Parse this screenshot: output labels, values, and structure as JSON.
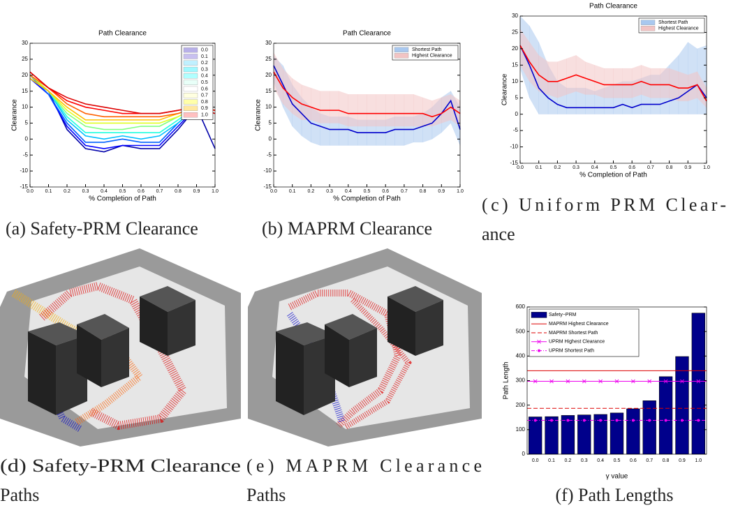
{
  "chart_data": [
    {
      "type": "line",
      "title": "Path Clearance",
      "x_label": "% Completion of Path",
      "y_label": "Clearance",
      "x": [
        0,
        0.1,
        0.2,
        0.3,
        0.4,
        0.5,
        0.6,
        0.7,
        0.8,
        0.9,
        1
      ],
      "xlim": [
        0,
        1
      ],
      "ylim": [
        -15,
        30
      ],
      "xticks": [
        {
          "value": 0,
          "label": "0.0"
        },
        0.1,
        0.2,
        0.3,
        0.4,
        0.5,
        0.6,
        0.7,
        0.8,
        0.9,
        {
          "value": 1,
          "label": "1.0"
        }
      ],
      "yticks": [
        -15,
        -10,
        -5,
        0,
        5,
        10,
        15,
        20,
        25,
        30
      ],
      "legend": "upper right",
      "series": [
        {
          "name": "0.0",
          "color": "#0000aa",
          "band_color": "#b8b0e8",
          "values": [
            20,
            15,
            3,
            -3,
            -4,
            -2,
            -3,
            -3,
            3,
            10,
            -3
          ]
        },
        {
          "name": "0.1",
          "color": "#0000ff",
          "band_color": "#c8c0f0",
          "values": [
            19,
            14,
            4,
            -2,
            -3,
            -2,
            -2,
            -2,
            4,
            10,
            9
          ]
        },
        {
          "name": "0.2",
          "color": "#0060ff",
          "band_color": "#c0f0ff",
          "values": [
            20,
            14,
            5,
            -1,
            -1,
            0,
            -1,
            -1,
            5,
            10,
            9
          ]
        },
        {
          "name": "0.3",
          "color": "#00c0ff",
          "band_color": "#a0f8ff",
          "values": [
            19,
            15,
            6,
            1,
            0,
            1,
            0,
            1,
            5,
            10,
            9
          ]
        },
        {
          "name": "0.4",
          "color": "#20ffdf",
          "band_color": "#b0ffff",
          "values": [
            20,
            15,
            7,
            2,
            2,
            2,
            2,
            2,
            6,
            10,
            9
          ]
        },
        {
          "name": "0.5",
          "color": "#80ff80",
          "band_color": "#e8fff8",
          "values": [
            19,
            15,
            8,
            4,
            3,
            3,
            4,
            4,
            7,
            10,
            9
          ]
        },
        {
          "name": "0.6",
          "color": "#dfff20",
          "band_color": "#ffffff",
          "values": [
            20,
            15,
            9,
            5,
            5,
            5,
            5,
            5,
            7,
            10,
            9
          ]
        },
        {
          "name": "0.7",
          "color": "#ffc000",
          "band_color": "#ffffe0",
          "values": [
            19,
            15,
            10,
            6,
            6,
            6,
            6,
            6,
            8,
            10,
            9
          ]
        },
        {
          "name": "0.8",
          "color": "#ff6000",
          "band_color": "#ffffa8",
          "values": [
            20,
            16,
            11,
            8,
            7,
            7,
            7,
            7,
            8,
            10,
            9
          ]
        },
        {
          "name": "0.9",
          "color": "#ff0000",
          "band_color": "#ffe8a0",
          "values": [
            21,
            16,
            12,
            10,
            9,
            8,
            8,
            8,
            9,
            10,
            9
          ]
        },
        {
          "name": "1.0",
          "color": "#dd0000",
          "band_color": "#ffc0c0",
          "values": [
            21,
            16,
            13,
            11,
            10,
            9,
            8,
            8,
            9,
            10,
            8
          ]
        }
      ]
    },
    {
      "type": "line",
      "title": "Path Clearance",
      "x_label": "% Completion of Path",
      "y_label": "Clearance",
      "x": [
        0,
        0.05,
        0.1,
        0.15,
        0.2,
        0.25,
        0.3,
        0.35,
        0.4,
        0.45,
        0.5,
        0.55,
        0.6,
        0.65,
        0.7,
        0.75,
        0.8,
        0.85,
        0.9,
        0.95,
        1
      ],
      "xlim": [
        0,
        1
      ],
      "ylim": [
        -15,
        30
      ],
      "xticks": [
        {
          "value": 0,
          "label": "0.0"
        },
        0.1,
        0.2,
        0.3,
        0.4,
        0.5,
        0.6,
        0.7,
        0.8,
        0.9,
        {
          "value": 1,
          "label": "1.0"
        }
      ],
      "yticks": [
        -15,
        -10,
        -5,
        0,
        5,
        10,
        15,
        20,
        25,
        30
      ],
      "legend": "upper right",
      "series": [
        {
          "name": "Shortest Path",
          "color": "#0000cc",
          "band_color": "#a9c8ef",
          "values": [
            23,
            17,
            11,
            8,
            5,
            4,
            3,
            3,
            3,
            2,
            2,
            2,
            2,
            3,
            3,
            3,
            4,
            5,
            8,
            12,
            3
          ],
          "lower": [
            18,
            10,
            4,
            1,
            -1,
            -2,
            -2,
            -2,
            -2,
            -2,
            -2,
            -2,
            -2,
            -2,
            -2,
            -1,
            -1,
            0,
            2,
            5,
            -2
          ],
          "upper": [
            26,
            23,
            17,
            13,
            10,
            8,
            7,
            7,
            7,
            6,
            6,
            6,
            6,
            7,
            7,
            7,
            8,
            10,
            13,
            15,
            10
          ]
        },
        {
          "name": "Highest Clearance",
          "color": "#ff0000",
          "band_color": "#f2c4c4",
          "values": [
            21,
            16,
            13,
            11,
            10,
            9,
            9,
            9,
            8,
            8,
            8,
            8,
            8,
            8,
            8,
            8,
            8,
            7,
            8,
            10,
            8
          ],
          "lower": [
            16,
            11,
            8,
            6,
            6,
            5,
            5,
            5,
            4,
            4,
            4,
            4,
            4,
            4,
            4,
            4,
            4,
            4,
            5,
            6,
            4
          ],
          "upper": [
            27,
            22,
            19,
            17,
            16,
            15,
            15,
            15,
            14,
            14,
            14,
            14,
            14,
            14,
            14,
            14,
            13,
            12,
            13,
            14,
            12
          ]
        }
      ]
    },
    {
      "type": "line",
      "title": "Path Clearance",
      "x_label": "% Completion of Path",
      "y_label": "Clearance",
      "x": [
        0,
        0.05,
        0.1,
        0.15,
        0.2,
        0.25,
        0.3,
        0.35,
        0.4,
        0.45,
        0.5,
        0.55,
        0.6,
        0.65,
        0.7,
        0.75,
        0.8,
        0.85,
        0.9,
        0.95,
        1
      ],
      "xlim": [
        0,
        1
      ],
      "ylim": [
        -15,
        30
      ],
      "xticks": [
        {
          "value": 0,
          "label": "0.0"
        },
        0.1,
        0.2,
        0.3,
        0.4,
        0.5,
        0.6,
        0.7,
        0.8,
        0.9,
        {
          "value": 1,
          "label": "1.0"
        }
      ],
      "yticks": [
        -15,
        -10,
        -5,
        0,
        5,
        10,
        15,
        20,
        25,
        30
      ],
      "legend": "upper right",
      "series": [
        {
          "name": "Shortest Path",
          "color": "#0000cc",
          "band_color": "#a9c8ef",
          "values": [
            21,
            15,
            8,
            5,
            3,
            2,
            2,
            2,
            2,
            2,
            2,
            3,
            2,
            3,
            3,
            3,
            4,
            5,
            7,
            9,
            5
          ],
          "lower": [
            14,
            5,
            0,
            0,
            0,
            0,
            0,
            0,
            0,
            0,
            0,
            0,
            0,
            0,
            0,
            0,
            0,
            0,
            0,
            0,
            0
          ],
          "upper": [
            30,
            27,
            22,
            15,
            10,
            8,
            8,
            8,
            7,
            8,
            9,
            10,
            10,
            11,
            12,
            12,
            15,
            18,
            22,
            20,
            21
          ]
        },
        {
          "name": "Highest Clearance",
          "color": "#ff0000",
          "band_color": "#f2c4c4",
          "values": [
            21,
            16,
            12,
            10,
            10,
            11,
            12,
            11,
            10,
            9,
            9,
            9,
            9,
            10,
            9,
            9,
            9,
            8,
            8,
            9,
            4
          ],
          "lower": [
            15,
            10,
            7,
            6,
            5,
            6,
            7,
            6,
            6,
            5,
            5,
            5,
            5,
            6,
            5,
            5,
            5,
            4,
            4,
            5,
            2
          ],
          "upper": [
            26,
            22,
            18,
            16,
            16,
            17,
            18,
            16,
            15,
            14,
            14,
            14,
            14,
            15,
            14,
            14,
            14,
            13,
            12,
            13,
            8
          ]
        }
      ]
    },
    {
      "type": "bar",
      "x_label": "γ value",
      "y_label": "Path Length",
      "categories": [
        "0.0",
        "0.1",
        "0.2",
        "0.3",
        "0.4",
        "0.5",
        "0.6",
        "0.7",
        "0.8",
        "0.9",
        "1.0"
      ],
      "ylim": [
        0,
        600
      ],
      "yticks": [
        0,
        100,
        200,
        300,
        400,
        500,
        600
      ],
      "legend": "upper left",
      "series": [
        {
          "name": "Safety−PRM",
          "color": "#00008b",
          "values": [
            152,
            153,
            158,
            160,
            162,
            168,
            185,
            218,
            316,
            398,
            575
          ]
        }
      ],
      "hlines": [
        {
          "name": "MAPRM Highest Clearance",
          "color": "#dd0000",
          "value": 340,
          "dash": "solid",
          "marker": "none"
        },
        {
          "name": "MAPRM Shortest Path",
          "color": "#dd0000",
          "value": 187,
          "dash": "dashed",
          "marker": "none"
        },
        {
          "name": "UPRM Highest Clearance",
          "color": "#ee00ee",
          "value": 297,
          "dash": "solid",
          "marker": "x"
        },
        {
          "name": "UPRM Shortest Path",
          "color": "#ee00ee",
          "value": 138,
          "dash": "dashdot",
          "marker": "dot"
        }
      ]
    }
  ],
  "captions": [
    [
      "(a) Safety-PRM Clearance"
    ],
    [
      "(b) MAPRM Clearance"
    ],
    [
      "(c) Uniform PRM Clear-",
      "ance"
    ],
    [
      "(d) Safety-PRM Clearance",
      "Paths"
    ],
    [
      "(e) MAPRM Clearance",
      "Paths"
    ],
    [
      "(f) Path Lengths"
    ]
  ]
}
